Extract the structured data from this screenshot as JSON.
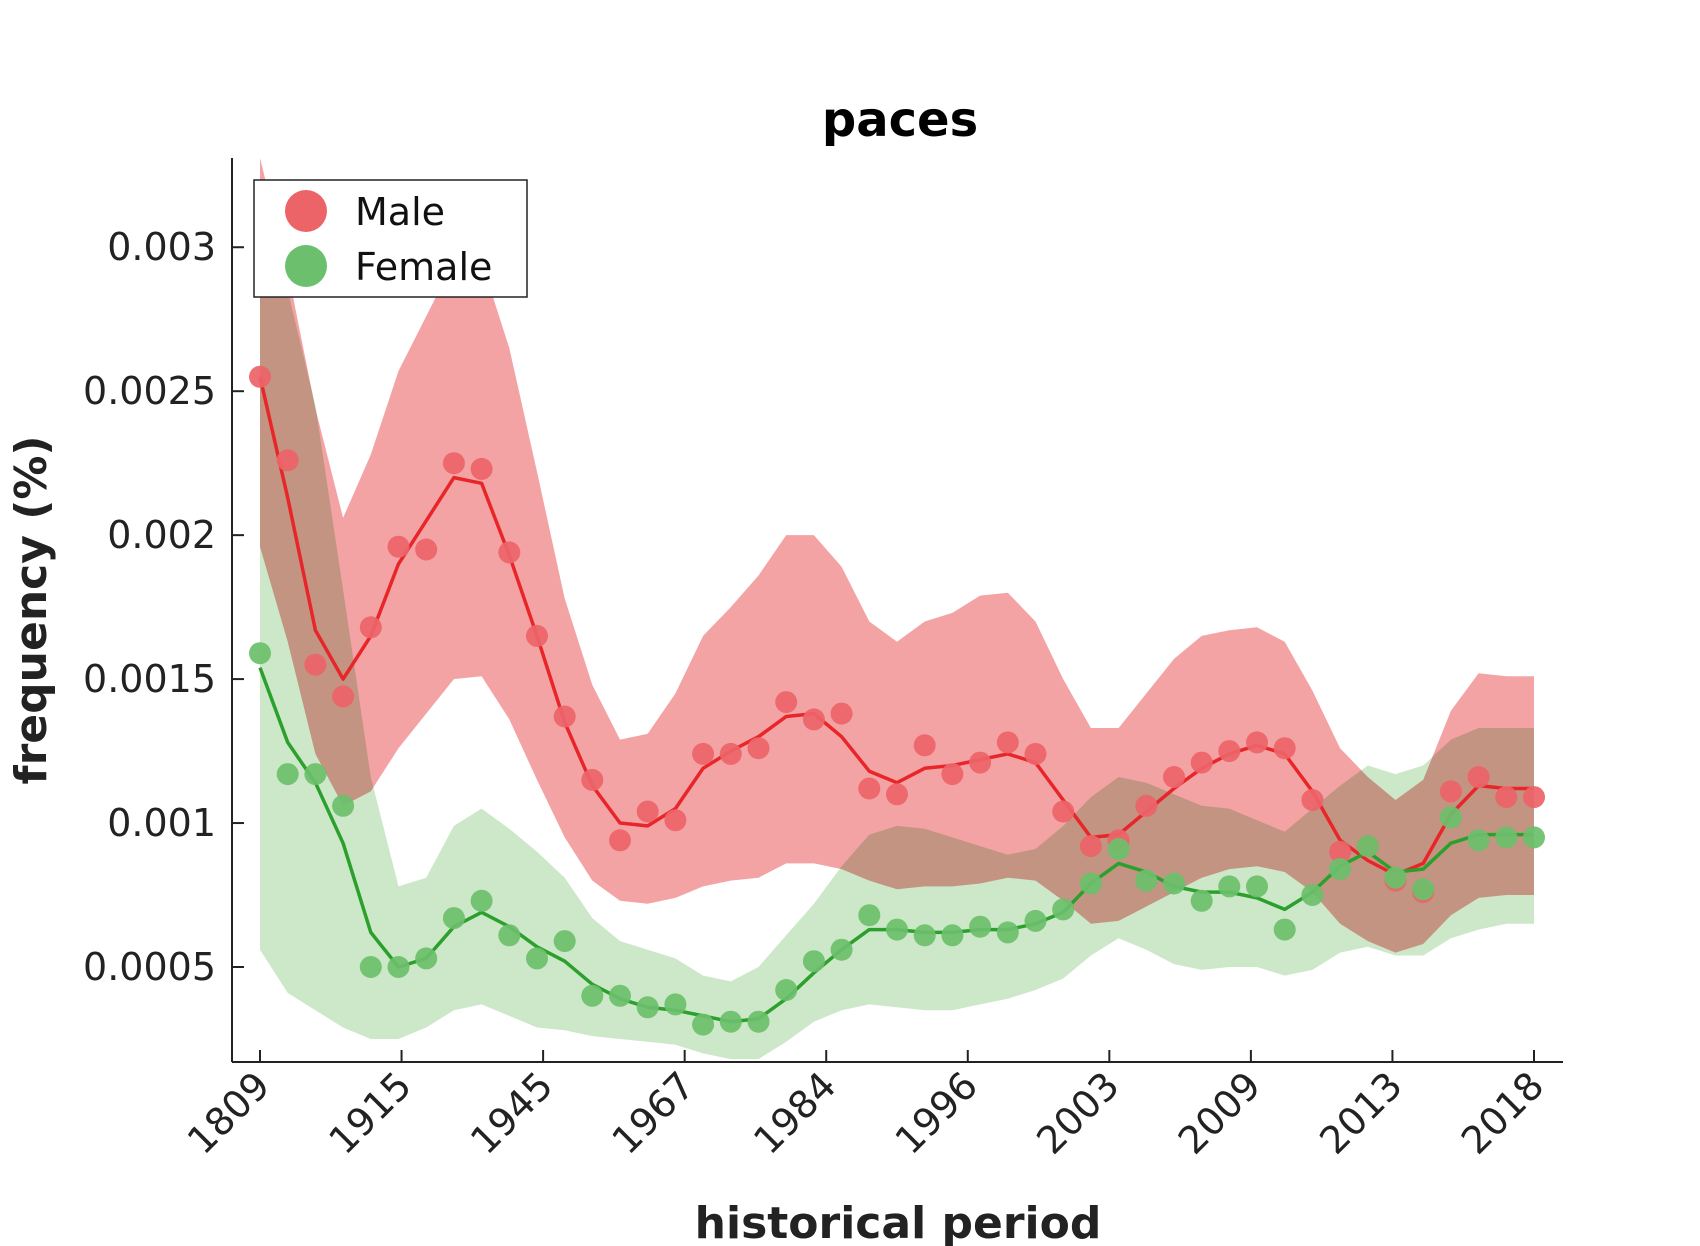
{
  "chart_data": {
    "type": "line",
    "title": "paces",
    "xlabel": "historical period",
    "ylabel": "frequency (%)",
    "x_tick_labels": [
      "1809",
      "1915",
      "1945",
      "1967",
      "1984",
      "1996",
      "2003",
      "2009",
      "2013",
      "2018"
    ],
    "y_ticks": [
      0.0005,
      0.001,
      0.0015,
      0.002,
      0.0025,
      0.003
    ],
    "y_tick_labels": [
      "0.0005",
      "0.001",
      "0.0015",
      "0.002",
      "0.0025",
      "0.003"
    ],
    "ylim": [
      0.00017,
      0.00331
    ],
    "n_points": 47,
    "legend": {
      "placement": "top-left",
      "entries": [
        "Male",
        "Female"
      ]
    },
    "series": [
      {
        "name": "Male",
        "color": "#e8262a",
        "marker_color": "#ec6468",
        "band_color": "#f4a3a5",
        "points": [
          0.00255,
          0.00226,
          0.00155,
          0.00144,
          0.00168,
          0.00196,
          0.00195,
          0.00225,
          0.00223,
          0.00194,
          0.00165,
          0.00137,
          0.00115,
          0.00094,
          0.00104,
          0.00101,
          0.00124,
          0.00124,
          0.00126,
          0.00142,
          0.00136,
          0.00138,
          0.00112,
          0.0011,
          0.00127,
          0.00117,
          0.00121,
          0.00128,
          0.00124,
          0.00104,
          0.00092,
          0.00094,
          0.00106,
          0.00116,
          0.00121,
          0.00125,
          0.00128,
          0.00126,
          0.00108,
          0.0009,
          0.00092,
          0.0008,
          0.00076,
          0.00111,
          0.00116,
          0.00109,
          0.00109
        ],
        "line": [
          0.00255,
          0.00213,
          0.00167,
          0.0015,
          0.00165,
          0.0019,
          0.00205,
          0.0022,
          0.00218,
          0.00193,
          0.00165,
          0.00135,
          0.00113,
          0.001,
          0.00099,
          0.00105,
          0.00119,
          0.00125,
          0.0013,
          0.00137,
          0.00138,
          0.0013,
          0.00118,
          0.00114,
          0.00119,
          0.0012,
          0.00122,
          0.00124,
          0.00121,
          0.00108,
          0.00095,
          0.00096,
          0.00104,
          0.00112,
          0.00119,
          0.00124,
          0.00127,
          0.00124,
          0.00111,
          0.00094,
          0.00087,
          0.00082,
          0.00086,
          0.00103,
          0.00113,
          0.00112,
          0.00112
        ],
        "upper": [
          0.00331,
          0.00292,
          0.00244,
          0.00206,
          0.00228,
          0.00257,
          0.00276,
          0.00295,
          0.00295,
          0.00265,
          0.00222,
          0.00178,
          0.00148,
          0.00129,
          0.00131,
          0.00145,
          0.00165,
          0.00175,
          0.00186,
          0.002,
          0.002,
          0.00189,
          0.0017,
          0.00163,
          0.0017,
          0.00173,
          0.00179,
          0.0018,
          0.0017,
          0.0015,
          0.00133,
          0.00133,
          0.00145,
          0.00157,
          0.00165,
          0.00167,
          0.00168,
          0.00163,
          0.00146,
          0.00126,
          0.00116,
          0.00108,
          0.00115,
          0.00139,
          0.00152,
          0.00151,
          0.00151
        ],
        "lower": [
          0.00196,
          0.00163,
          0.00124,
          0.00106,
          0.00111,
          0.00126,
          0.00138,
          0.0015,
          0.00151,
          0.00136,
          0.00115,
          0.00095,
          0.0008,
          0.00073,
          0.00072,
          0.00074,
          0.00078,
          0.0008,
          0.00081,
          0.00086,
          0.00086,
          0.00084,
          0.0008,
          0.00077,
          0.00078,
          0.00078,
          0.00079,
          0.00081,
          0.0008,
          0.00073,
          0.00065,
          0.00066,
          0.00071,
          0.00076,
          0.00081,
          0.00084,
          0.00085,
          0.00083,
          0.00076,
          0.00065,
          0.00059,
          0.00055,
          0.00058,
          0.00068,
          0.00074,
          0.00075,
          0.00075
        ]
      },
      {
        "name": "Female",
        "color": "#2ca02c",
        "marker_color": "#6cbf6c",
        "band_color": "#acdaa8",
        "points": [
          0.00159,
          0.00117,
          0.00117,
          0.00106,
          0.0005,
          0.0005,
          0.00053,
          0.00067,
          0.00073,
          0.00061,
          0.00053,
          0.00059,
          0.0004,
          0.0004,
          0.00036,
          0.00037,
          0.0003,
          0.00031,
          0.00031,
          0.00042,
          0.00052,
          0.00056,
          0.00068,
          0.00063,
          0.00061,
          0.00061,
          0.00064,
          0.00062,
          0.00066,
          0.0007,
          0.00079,
          0.00091,
          0.0008,
          0.00079,
          0.00073,
          0.00078,
          0.00078,
          0.00063,
          0.00075,
          0.00084,
          0.00092,
          0.00081,
          0.00077,
          0.00102,
          0.00094,
          0.00095,
          0.00095
        ],
        "line": [
          0.00154,
          0.00128,
          0.00114,
          0.00093,
          0.00062,
          0.0005,
          0.00053,
          0.00064,
          0.00069,
          0.00064,
          0.00057,
          0.00052,
          0.00044,
          0.00039,
          0.00036,
          0.00035,
          0.00033,
          0.00031,
          0.00032,
          0.00039,
          0.00048,
          0.00056,
          0.00063,
          0.00063,
          0.00062,
          0.00062,
          0.00063,
          0.00063,
          0.00065,
          0.00069,
          0.00079,
          0.00086,
          0.00083,
          0.00078,
          0.00076,
          0.00076,
          0.00074,
          0.0007,
          0.00076,
          0.00085,
          0.0009,
          0.00083,
          0.00084,
          0.00093,
          0.00096,
          0.00096,
          0.00096
        ],
        "upper": [
          0.00292,
          0.00285,
          0.00245,
          0.00181,
          0.00116,
          0.00078,
          0.00081,
          0.00099,
          0.00105,
          0.00098,
          0.0009,
          0.00081,
          0.00067,
          0.00059,
          0.00056,
          0.00053,
          0.00047,
          0.00045,
          0.0005,
          0.00061,
          0.00072,
          0.00085,
          0.00096,
          0.00099,
          0.00098,
          0.00095,
          0.00092,
          0.00089,
          0.00091,
          0.00099,
          0.00109,
          0.00116,
          0.00114,
          0.0011,
          0.00106,
          0.00105,
          0.00101,
          0.00097,
          0.00105,
          0.00113,
          0.0012,
          0.00117,
          0.0012,
          0.00129,
          0.00133,
          0.00133,
          0.00133
        ],
        "lower": [
          0.00056,
          0.00041,
          0.00035,
          0.00029,
          0.00025,
          0.00025,
          0.00029,
          0.00035,
          0.00037,
          0.00033,
          0.00029,
          0.00028,
          0.00026,
          0.00025,
          0.00024,
          0.00023,
          0.0002,
          0.00018,
          0.00018,
          0.00024,
          0.00031,
          0.00035,
          0.00037,
          0.00036,
          0.00035,
          0.00035,
          0.00037,
          0.00039,
          0.00042,
          0.00046,
          0.00054,
          0.0006,
          0.00056,
          0.00051,
          0.00049,
          0.0005,
          0.0005,
          0.00047,
          0.00049,
          0.00055,
          0.00057,
          0.00054,
          0.00054,
          0.0006,
          0.00063,
          0.00065,
          0.00065
        ]
      }
    ]
  }
}
